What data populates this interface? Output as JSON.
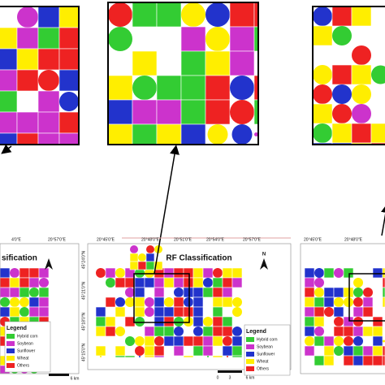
{
  "maps": [
    {
      "title": "sification",
      "x_labels": [
        "4'0\"E",
        "20°57'0\"E"
      ],
      "legend": {
        "title": "Legend",
        "items": [
          {
            "label": "Hybrid corn",
            "color": "#33cc33"
          },
          {
            "label": "Soybean",
            "color": "#cc33cc"
          },
          {
            "label": "Sunflower",
            "color": "#2233cc"
          },
          {
            "label": "Wheat",
            "color": "#ffee00"
          },
          {
            "label": "Others",
            "color": "#ee2222"
          }
        ]
      },
      "scale": [
        "6 km"
      ]
    },
    {
      "title": "RF Classification",
      "x_labels": [
        "20°45'0\"E",
        "20°48'0\"E",
        "20°51'0\"E",
        "20°54'0\"E",
        "20°57'0\"E"
      ],
      "y_labels": [
        "45°24'0\"N",
        "45°21'0\"N",
        "45°18'0\"N",
        "45°15'0\"N"
      ],
      "north": "N",
      "legend": {
        "title": "Legend",
        "items": [
          {
            "label": "Hybrid corn",
            "color": "#33cc33"
          },
          {
            "label": "Soybean",
            "color": "#cc33cc"
          },
          {
            "label": "Sunflower",
            "color": "#2233cc"
          },
          {
            "label": "Wheat",
            "color": "#ffee00"
          },
          {
            "label": "Others",
            "color": "#ee2222"
          }
        ]
      },
      "scale": [
        "0",
        "3",
        "6 km"
      ]
    },
    {
      "x_labels": [
        "20°45'0\"E",
        "20°48'0\"E"
      ]
    }
  ]
}
